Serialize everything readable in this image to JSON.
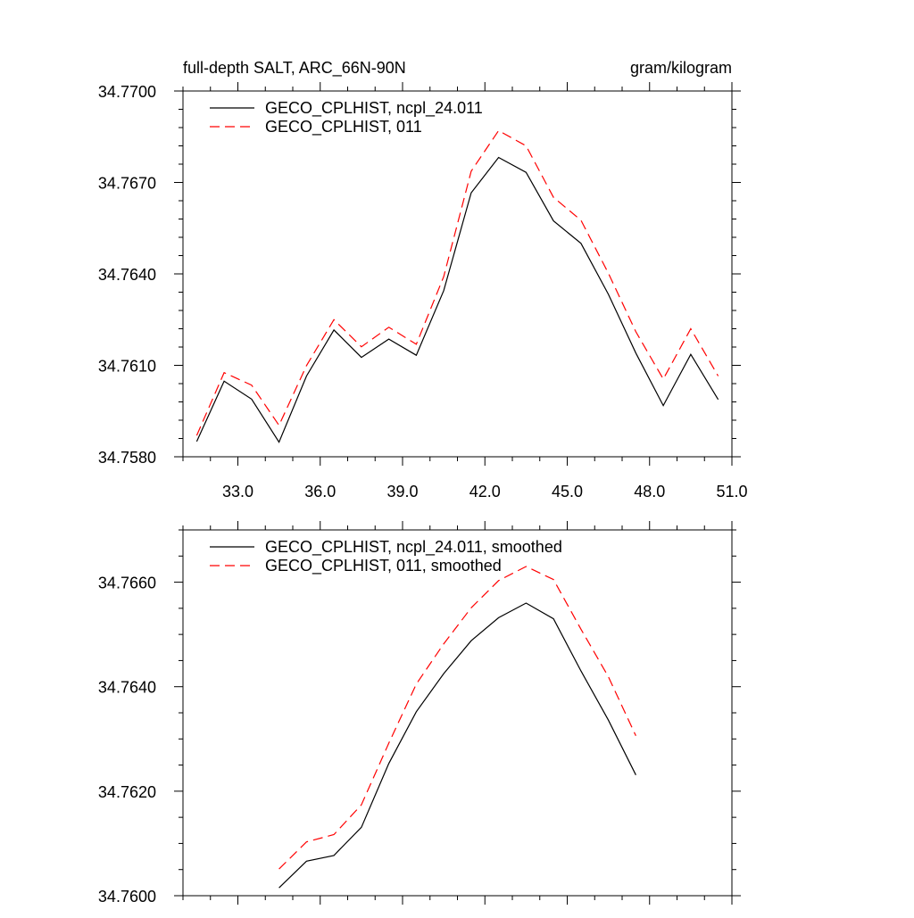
{
  "chart_data": [
    {
      "type": "line",
      "title": "full-depth SALT, ARC_66N-90N",
      "units": "gram/kilogram",
      "xlim": [
        31.0,
        51.0
      ],
      "ylim": [
        34.758,
        34.77
      ],
      "xticks": [
        33.0,
        36.0,
        39.0,
        42.0,
        45.0,
        48.0,
        51.0
      ],
      "xtick_labels": [
        "33.0",
        "36.0",
        "39.0",
        "42.0",
        "45.0",
        "48.0",
        "51.0"
      ],
      "yticks": [
        34.758,
        34.761,
        34.764,
        34.767,
        34.77
      ],
      "ytick_labels": [
        "34.7580",
        "34.7610",
        "34.7640",
        "34.7670",
        "34.7700"
      ],
      "grid": false,
      "legend_position": "top-left",
      "series": [
        {
          "name": "GECO_CPLHIST, ncpl_24.011",
          "color": "#000000",
          "style": "solid",
          "x": [
            31.5,
            32.5,
            33.5,
            34.5,
            35.5,
            36.5,
            37.5,
            38.5,
            39.5,
            40.5,
            41.5,
            42.5,
            43.5,
            44.5,
            45.5,
            46.5,
            47.5,
            48.5,
            49.5,
            50.5
          ],
          "y": [
            34.7585,
            34.76048,
            34.75989,
            34.75848,
            34.76065,
            34.76216,
            34.76126,
            34.76186,
            34.76133,
            34.76345,
            34.76666,
            34.76782,
            34.76733,
            34.76574,
            34.765,
            34.76333,
            34.7614,
            34.75968,
            34.76136,
            34.75988
          ]
        },
        {
          "name": "GECO_CPLHIST, 011",
          "color": "#ff0000",
          "style": "dashed",
          "x": [
            31.5,
            32.5,
            33.5,
            34.5,
            35.5,
            36.5,
            37.5,
            38.5,
            39.5,
            40.5,
            41.5,
            42.5,
            43.5,
            44.5,
            45.5,
            46.5,
            47.5,
            48.5,
            49.5,
            50.5
          ],
          "y": [
            34.7587,
            34.76076,
            34.76035,
            34.75903,
            34.76099,
            34.7625,
            34.76161,
            34.76225,
            34.76169,
            34.76391,
            34.76737,
            34.7687,
            34.7682,
            34.76651,
            34.76576,
            34.76402,
            34.7621,
            34.76055,
            34.7622,
            34.76065
          ]
        }
      ]
    },
    {
      "type": "line",
      "title": "",
      "xlim": [
        31.0,
        51.0
      ],
      "ylim": [
        34.76,
        34.767
      ],
      "xticks": [
        33.0,
        36.0,
        39.0,
        42.0,
        45.0,
        48.0,
        51.0
      ],
      "yticks": [
        34.76,
        34.762,
        34.764,
        34.766
      ],
      "ytick_labels": [
        "34.7600",
        "34.7620",
        "34.7640",
        "34.7660"
      ],
      "grid": false,
      "legend_position": "top-left",
      "series": [
        {
          "name": "GECO_CPLHIST, ncpl_24.011, smoothed",
          "color": "#000000",
          "style": "solid",
          "x": [
            34.5,
            35.5,
            36.5,
            37.5,
            38.5,
            39.5,
            40.5,
            41.5,
            42.5,
            43.5,
            44.5,
            45.5,
            46.5,
            47.5
          ],
          "y": [
            34.76015,
            34.76066,
            34.76077,
            34.76131,
            34.76253,
            34.76352,
            34.76425,
            34.76488,
            34.76532,
            34.7656,
            34.7653,
            34.7643,
            34.76336,
            34.76231
          ]
        },
        {
          "name": "GECO_CPLHIST, 011, smoothed",
          "color": "#ff0000",
          "style": "dashed",
          "x": [
            34.5,
            35.5,
            36.5,
            37.5,
            38.5,
            39.5,
            40.5,
            41.5,
            42.5,
            43.5,
            44.5,
            45.5,
            46.5,
            47.5
          ],
          "y": [
            34.76051,
            34.76103,
            34.76117,
            34.76174,
            34.76292,
            34.76405,
            34.76482,
            34.76551,
            34.76603,
            34.7663,
            34.76605,
            34.7651,
            34.76419,
            34.76306
          ]
        }
      ]
    }
  ]
}
